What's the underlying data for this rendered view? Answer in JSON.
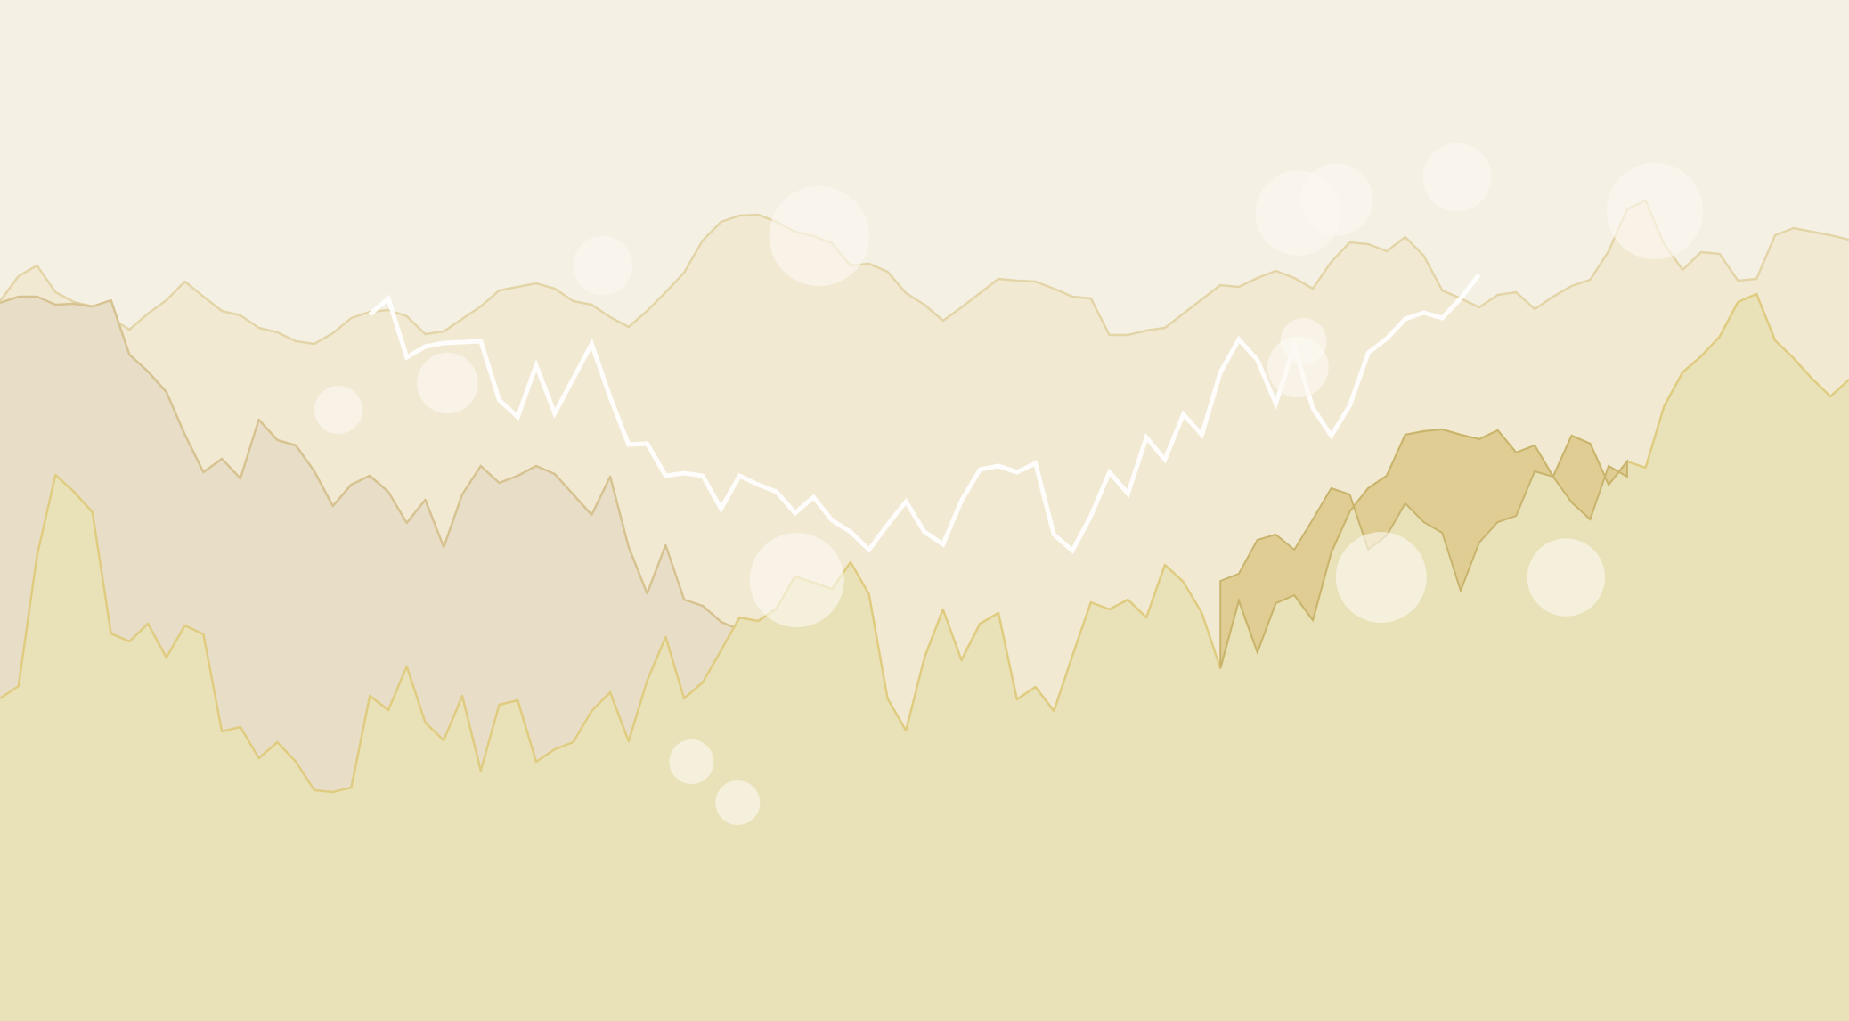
{
  "chart_data": {
    "type": "area",
    "title": "",
    "xlabel": "",
    "ylabel": "",
    "grid": false,
    "legend": "none",
    "x": [
      0,
      1,
      2,
      3,
      4,
      5,
      6,
      7,
      8,
      9,
      10,
      11,
      12,
      13,
      14,
      15,
      16,
      17,
      18,
      19,
      20,
      21,
      22,
      23,
      24,
      25,
      26,
      27,
      28,
      29,
      30,
      31,
      32,
      33,
      34,
      35,
      36,
      37,
      38,
      39,
      40,
      41,
      42,
      43,
      44,
      45,
      46,
      47,
      48,
      49,
      50,
      51,
      52,
      53,
      54,
      55,
      56,
      57,
      58,
      59,
      60,
      61,
      62,
      63,
      64,
      65,
      66,
      67,
      68,
      69,
      70,
      71,
      72,
      73,
      74,
      75,
      76,
      77,
      78,
      79,
      80,
      81,
      82,
      83,
      84,
      85,
      86,
      87,
      88,
      89,
      90,
      91,
      92,
      93,
      94,
      95,
      96,
      97,
      98,
      99,
      100
    ],
    "xlim": [
      0,
      100
    ],
    "ylim": [
      0,
      1146
    ],
    "colors": {
      "background": "#f5f0e4",
      "series_fill": [
        "#f1e9d2",
        "#e8dec7",
        "#e9e1b8",
        "#dfcd93"
      ],
      "series_stroke": [
        "#e3d5a8",
        "#d7c391",
        "#e0cc80",
        "#c9b46d"
      ],
      "line": "#ffffff",
      "bubble": "#fbf9f2"
    },
    "series": [
      {
        "values": [
          808,
          836,
          848,
          818,
          807,
          802,
          789,
          776,
          794,
          809,
          830,
          813,
          797,
          792,
          778,
          773,
          763,
          760,
          772,
          789,
          796,
          798,
          791,
          771,
          774,
          788,
          802,
          820,
          824,
          828,
          822,
          808,
          804,
          790,
          779,
          797,
          818,
          840,
          876,
          897,
          904,
          905,
          897,
          886,
          881,
          873,
          848,
          850,
          841,
          817,
          804,
          786,
          801,
          817,
          833,
          831,
          830,
          822,
          813,
          811,
          770,
          770,
          775,
          778,
          794,
          810,
          826,
          824,
          834,
          842,
          834,
          822,
          852,
          874,
          872,
          864,
          880,
          859,
          820,
          811,
          801,
          815,
          818,
          799,
          813,
          825,
          832,
          864,
          911,
          921,
          872,
          843,
          863,
          861,
          831,
          833,
          882,
          890,
          886,
          882,
          877
        ]
      },
      {
        "values": [
          806,
          813,
          813,
          804,
          805,
          802,
          809,
          748,
          729,
          706,
          658,
          616,
          631,
          609,
          675,
          652,
          646,
          617,
          578,
          602,
          612,
          594,
          559,
          585,
          532,
          591,
          623,
          604,
          612,
          623,
          614,
          591,
          568,
          611,
          532,
          480,
          534,
          473,
          466,
          448,
          439,
          406,
          398,
          328,
          292,
          256,
          262,
          258,
          281,
          292,
          239,
          231,
          246,
          225,
          239,
          262,
          253,
          237,
          198,
          230,
          256,
          301,
          323,
          345,
          366,
          384,
          346,
          301,
          275,
          297,
          297,
          334,
          367,
          424,
          423,
          417,
          372,
          390,
          393,
          339,
          317,
          327,
          275,
          300,
          283,
          312,
          325,
          322,
          378,
          400,
          479,
          494,
          503,
          492,
          511,
          533,
          501,
          504,
          478,
          507,
          533
        ]
      },
      {
        "values": [
          362,
          376,
          522,
          613,
          594,
          571,
          435,
          426,
          446,
          408,
          444,
          434,
          325,
          330,
          295,
          313,
          291,
          259,
          257,
          262,
          365,
          349,
          398,
          335,
          315,
          365,
          281,
          355,
          360,
          291,
          305,
          313,
          348,
          369,
          314,
          382,
          431,
          362,
          380,
          416,
          453,
          449,
          463,
          499,
          492,
          485,
          515,
          479,
          362,
          326,
          408,
          462,
          405,
          446,
          458,
          361,
          375,
          348,
          410,
          470,
          462,
          473,
          453,
          512,
          493,
          458,
          396,
          472,
          414,
          469,
          478,
          450,
          526,
          572,
          598,
          612,
          658,
          662,
          664,
          658,
          653,
          663,
          638,
          646,
          611,
          657,
          648,
          602,
          628,
          621,
          690,
          728,
          746,
          768,
          807,
          816,
          764,
          744,
          721,
          701,
          720
        ]
      },
      {
        "values": [
          null,
          null,
          null,
          null,
          null,
          null,
          null,
          null,
          null,
          null,
          null,
          null,
          null,
          null,
          null,
          null,
          null,
          null,
          null,
          null,
          null,
          null,
          null,
          null,
          null,
          null,
          null,
          null,
          null,
          null,
          null,
          null,
          null,
          null,
          null,
          null,
          null,
          null,
          null,
          null,
          null,
          null,
          null,
          null,
          null,
          null,
          null,
          null,
          null,
          null,
          null,
          null,
          null,
          null,
          null,
          null,
          null,
          null,
          null,
          null,
          null,
          null,
          null,
          null,
          null,
          null,
          null,
          null,
          null,
          null,
          null,
          null,
          null,
          null,
          null,
          null,
          null,
          null,
          null,
          null,
          null,
          null,
          null,
          null,
          null,
          null,
          null,
          null,
          null,
          null,
          null,
          null,
          null,
          null,
          null,
          null,
          null,
          null,
          null,
          null,
          null
        ]
      }
    ],
    "overlap_band": {
      "x": [
        66,
        67,
        68,
        69,
        70,
        71,
        72,
        73,
        74,
        75,
        76,
        77,
        78,
        79,
        80,
        81,
        82,
        83,
        84,
        85,
        86,
        87,
        88
      ],
      "values": [
        494,
        502,
        540,
        546,
        529,
        563,
        598,
        591,
        529,
        545,
        581,
        560,
        548,
        483,
        537,
        560,
        567,
        617,
        611,
        582,
        563,
        623,
        611
      ]
    },
    "line": {
      "x": [
        20,
        21,
        22,
        23,
        24,
        25,
        26,
        27,
        28,
        29,
        30,
        31,
        32,
        33,
        34,
        35,
        36,
        37,
        38,
        39,
        40,
        41,
        42,
        43,
        44,
        45,
        46,
        47,
        48,
        49,
        50,
        51,
        52,
        53,
        54,
        55,
        56,
        57,
        58,
        59,
        60,
        61,
        62,
        63,
        64,
        65,
        66,
        67,
        68,
        69,
        70,
        71,
        72,
        73,
        74,
        75,
        76,
        77,
        78,
        79,
        80
      ],
      "values": [
        793,
        811,
        745,
        757,
        761,
        762,
        763,
        697,
        678,
        736,
        682,
        721,
        760,
        700,
        647,
        648,
        612,
        615,
        612,
        575,
        612,
        602,
        594,
        570,
        588,
        562,
        549,
        529,
        557,
        583,
        549,
        535,
        584,
        619,
        623,
        616,
        626,
        546,
        528,
        567,
        616,
        592,
        655,
        630,
        681,
        658,
        728,
        765,
        742,
        693,
        757,
        688,
        657,
        691,
        750,
        766,
        788,
        795,
        789,
        811,
        838
      ]
    },
    "bubbles": [
      {
        "x": 32.6,
        "y": 848,
        "r": 3.2
      },
      {
        "x": 44.3,
        "y": 881,
        "r": 5.4
      },
      {
        "x": 72.3,
        "y": 922,
        "r": 3.9
      },
      {
        "x": 70.2,
        "y": 907,
        "r": 4.6
      },
      {
        "x": 78.8,
        "y": 947,
        "r": 3.7
      },
      {
        "x": 89.5,
        "y": 909,
        "r": 5.2
      },
      {
        "x": 70.5,
        "y": 763,
        "r": 2.5
      },
      {
        "x": 70.2,
        "y": 734,
        "r": 3.3
      },
      {
        "x": 24.2,
        "y": 716,
        "r": 3.3
      },
      {
        "x": 18.3,
        "y": 686,
        "r": 2.6
      },
      {
        "x": 43.1,
        "y": 495,
        "r": 5.1
      },
      {
        "x": 74.7,
        "y": 498,
        "r": 4.9
      },
      {
        "x": 84.7,
        "y": 498,
        "r": 4.2
      },
      {
        "x": 37.4,
        "y": 291,
        "r": 2.4
      },
      {
        "x": 39.9,
        "y": 245,
        "r": 2.4
      }
    ]
  }
}
